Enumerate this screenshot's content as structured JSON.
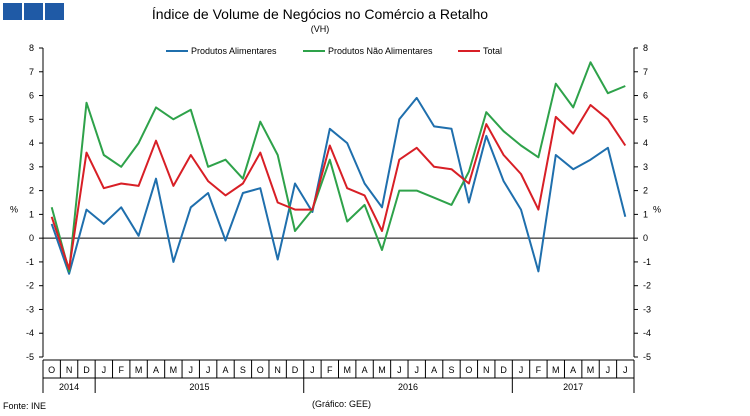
{
  "header": {
    "title": "Índice de Volume de Negócios no Comércio a Retalho",
    "subtitle": "(VH)"
  },
  "footer": {
    "source": "Fonte: INE",
    "credit": "(Gráfico: GEE)"
  },
  "chart_data": {
    "type": "line",
    "title": "Índice de Volume de Negócios no Comércio a Retalho",
    "subtitle": "(VH)",
    "ylabel": "%",
    "ylabel_right": "%",
    "ylim": [
      -5,
      8
    ],
    "yticks": [
      8,
      7,
      6,
      5,
      4,
      3,
      2,
      1,
      0,
      -1,
      -2,
      -3,
      -4,
      -5
    ],
    "grid": false,
    "legend_position": "top",
    "categories": [
      "O",
      "N",
      "D",
      "J",
      "F",
      "M",
      "A",
      "M",
      "J",
      "J",
      "A",
      "S",
      "O",
      "N",
      "D",
      "J",
      "F",
      "M",
      "A",
      "M",
      "J",
      "J",
      "A",
      "S",
      "O",
      "N",
      "D",
      "J",
      "F",
      "M",
      "A",
      "M",
      "J",
      "J"
    ],
    "years": [
      {
        "label": "2014",
        "start": 0,
        "end": 2
      },
      {
        "label": "2015",
        "start": 3,
        "end": 14
      },
      {
        "label": "2016",
        "start": 15,
        "end": 26
      },
      {
        "label": "2017",
        "start": 27,
        "end": 33
      }
    ],
    "series": [
      {
        "name": "Produtos Alimentares",
        "color": "#1f6fad",
        "values": [
          0.6,
          -1.5,
          1.2,
          0.6,
          1.3,
          0.1,
          2.5,
          -1.0,
          1.3,
          1.9,
          -0.1,
          1.9,
          2.1,
          -0.9,
          2.3,
          1.1,
          4.6,
          4.0,
          2.3,
          1.3,
          5.0,
          5.9,
          4.7,
          4.6,
          1.5,
          4.3,
          2.4,
          1.2,
          -1.4,
          3.5,
          2.9,
          3.3,
          3.8,
          0.9
        ]
      },
      {
        "name": "Produtos Não Alimentares",
        "color": "#2ea24a",
        "values": [
          1.3,
          -1.4,
          5.7,
          3.5,
          3.0,
          4.0,
          5.5,
          5.0,
          5.4,
          3.0,
          3.3,
          2.5,
          4.9,
          3.5,
          0.3,
          1.2,
          3.3,
          0.7,
          1.4,
          -0.5,
          2.0,
          2.0,
          1.7,
          1.4,
          2.8,
          5.3,
          4.5,
          3.9,
          3.4,
          6.5,
          5.5,
          7.4,
          6.1,
          6.4
        ]
      },
      {
        "name": "Total",
        "color": "#d81f26",
        "values": [
          0.9,
          -1.3,
          3.6,
          2.1,
          2.3,
          2.2,
          4.1,
          2.2,
          3.5,
          2.4,
          1.8,
          2.3,
          3.6,
          1.5,
          1.2,
          1.2,
          3.9,
          2.1,
          1.8,
          0.3,
          3.3,
          3.8,
          3.0,
          2.9,
          2.3,
          4.8,
          3.5,
          2.7,
          1.2,
          5.1,
          4.4,
          5.6,
          5.0,
          3.9
        ]
      }
    ]
  }
}
